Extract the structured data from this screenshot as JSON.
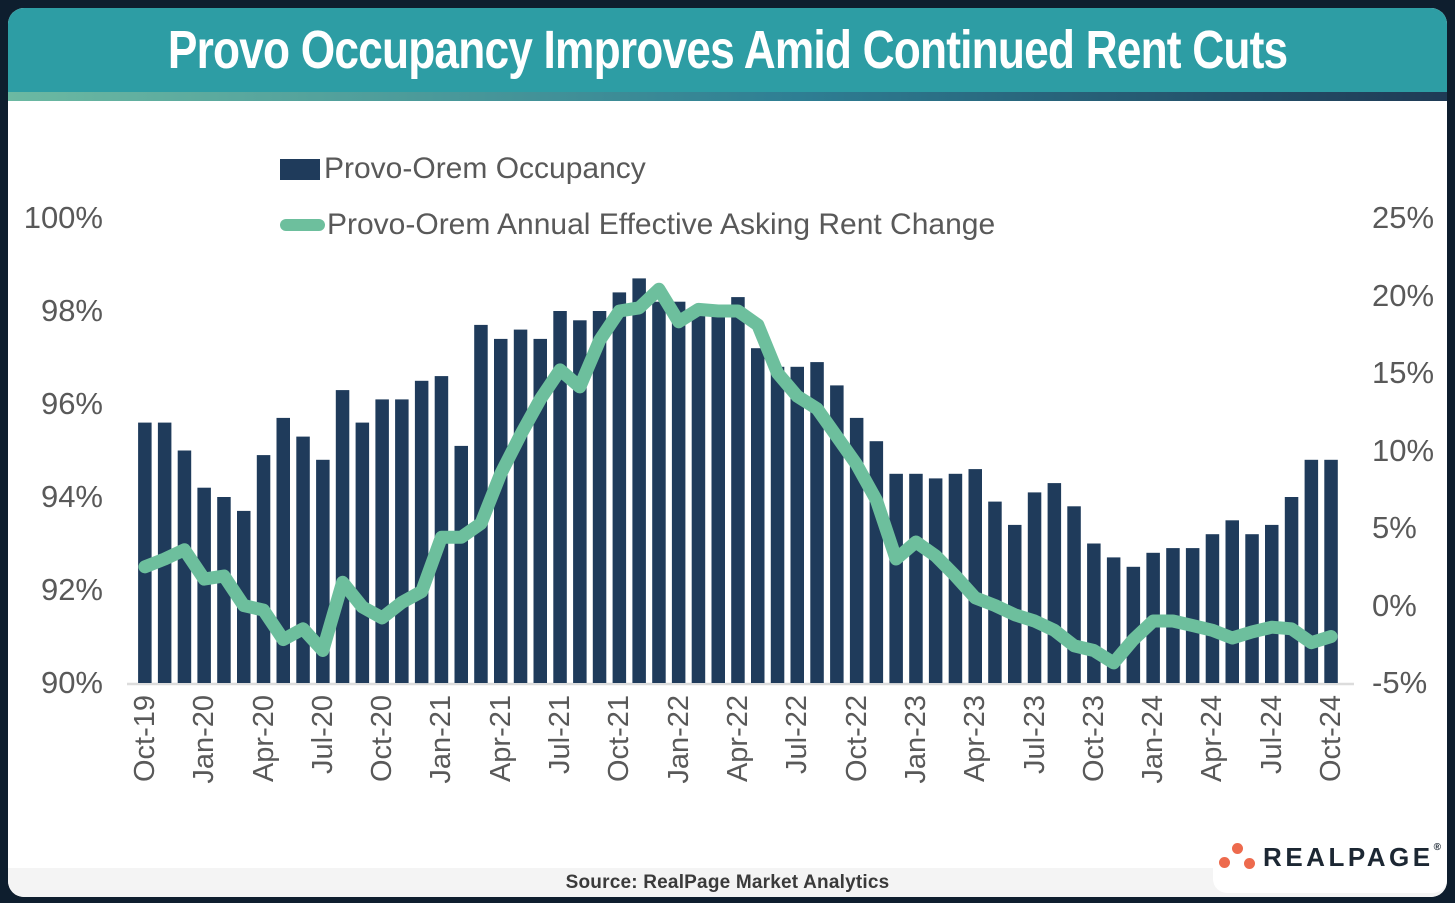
{
  "title": "Provo Occupancy Improves Amid Continued Rent Cuts",
  "legend": {
    "occupancy_label": "Provo-Orem Occupancy",
    "rent_label": "Provo-Orem Annual Effective Asking Rent Change"
  },
  "footer": {
    "source_text": "Source: RealPage Market Analytics"
  },
  "logo": {
    "text": "REALPAGE",
    "trademark": "®",
    "icon": "three-dots-triangle-icon"
  },
  "colors": {
    "header_teal": "#2D9DA4",
    "bar_navy": "#1F3B5B",
    "line_green": "#6DBF9D",
    "axis_gray": "#595959",
    "baseline_gray": "#DCDCDC",
    "footer_bg": "#F4F4F4",
    "logo_coral": "#ED6A4D",
    "logo_navy": "#1C2733",
    "frame_dark": "#0E1E2E",
    "gradient_strip": [
      "#6CB9A2",
      "#2E7E93",
      "#1F3A55"
    ]
  },
  "chart_data": {
    "type": "bar",
    "subtype": "bar-and-line-dual-axis",
    "title": "Provo Occupancy Improves Amid Continued Rent Cuts",
    "categories": [
      "Oct-19",
      "Nov-19",
      "Dec-19",
      "Jan-20",
      "Feb-20",
      "Mar-20",
      "Apr-20",
      "May-20",
      "Jun-20",
      "Jul-20",
      "Aug-20",
      "Sep-20",
      "Oct-20",
      "Nov-20",
      "Dec-20",
      "Jan-21",
      "Feb-21",
      "Mar-21",
      "Apr-21",
      "May-21",
      "Jun-21",
      "Jul-21",
      "Aug-21",
      "Sep-21",
      "Oct-21",
      "Nov-21",
      "Dec-21",
      "Jan-22",
      "Feb-22",
      "Mar-22",
      "Apr-22",
      "May-22",
      "Jun-22",
      "Jul-22",
      "Aug-22",
      "Sep-22",
      "Oct-22",
      "Nov-22",
      "Dec-22",
      "Jan-23",
      "Feb-23",
      "Mar-23",
      "Apr-23",
      "May-23",
      "Jun-23",
      "Jul-23",
      "Aug-23",
      "Sep-23",
      "Oct-23",
      "Nov-23",
      "Dec-23",
      "Jan-24",
      "Feb-24",
      "Mar-24",
      "Apr-24",
      "May-24",
      "Jun-24",
      "Jul-24",
      "Aug-24",
      "Sep-24",
      "Oct-24"
    ],
    "series": [
      {
        "name": "Provo-Orem Occupancy",
        "type": "bar",
        "axis": "left",
        "unit": "%",
        "values": [
          95.6,
          95.6,
          95.0,
          94.2,
          94.0,
          93.7,
          94.9,
          95.7,
          95.3,
          94.8,
          96.3,
          95.6,
          96.1,
          96.1,
          96.5,
          96.6,
          95.1,
          97.7,
          97.4,
          97.6,
          97.4,
          98.0,
          97.8,
          98.0,
          98.4,
          98.7,
          98.2,
          98.2,
          98.1,
          97.9,
          98.3,
          97.2,
          96.8,
          96.8,
          96.9,
          96.4,
          95.7,
          95.2,
          94.5,
          94.5,
          94.4,
          94.5,
          94.6,
          93.9,
          93.4,
          94.1,
          94.3,
          93.8,
          93.0,
          92.7,
          92.5,
          92.8,
          92.9,
          92.9,
          93.2,
          93.5,
          93.2,
          93.4,
          94.0,
          94.8,
          94.8
        ]
      },
      {
        "name": "Provo-Orem Annual Effective Asking Rent Change",
        "type": "line",
        "axis": "right",
        "unit": "%",
        "values": [
          2.5,
          3.0,
          3.6,
          1.7,
          1.9,
          0.0,
          -0.3,
          -2.2,
          -1.5,
          -2.9,
          1.5,
          -0.1,
          -0.8,
          0.2,
          0.9,
          4.4,
          4.4,
          5.3,
          8.5,
          11.0,
          13.3,
          15.2,
          14.1,
          17.1,
          19.0,
          19.2,
          20.4,
          18.3,
          19.1,
          19.0,
          19.0,
          18.1,
          15.0,
          13.5,
          12.7,
          10.9,
          9.1,
          6.8,
          3.0,
          4.1,
          3.2,
          1.9,
          0.5,
          0.0,
          -0.6,
          -1.0,
          -1.6,
          -2.6,
          -2.9,
          -3.7,
          -2.2,
          -1.0,
          -1.0,
          -1.3,
          -1.6,
          -2.1,
          -1.7,
          -1.4,
          -1.5,
          -2.4,
          -2.0
        ]
      }
    ],
    "left_axis": {
      "min": 90,
      "max": 100,
      "tick_labels": [
        "100%",
        "98%",
        "96%",
        "94%",
        "92%",
        "90%"
      ],
      "tick_values": [
        100,
        98,
        96,
        94,
        92,
        90
      ]
    },
    "right_axis": {
      "min": -5,
      "max": 25,
      "tick_labels": [
        "25%",
        "20%",
        "15%",
        "10%",
        "5%",
        "0%",
        "-5%"
      ],
      "tick_values": [
        25,
        20,
        15,
        10,
        5,
        0,
        -5
      ]
    },
    "x_tick_every": 3,
    "grid": false,
    "legend_position": "top-left"
  }
}
